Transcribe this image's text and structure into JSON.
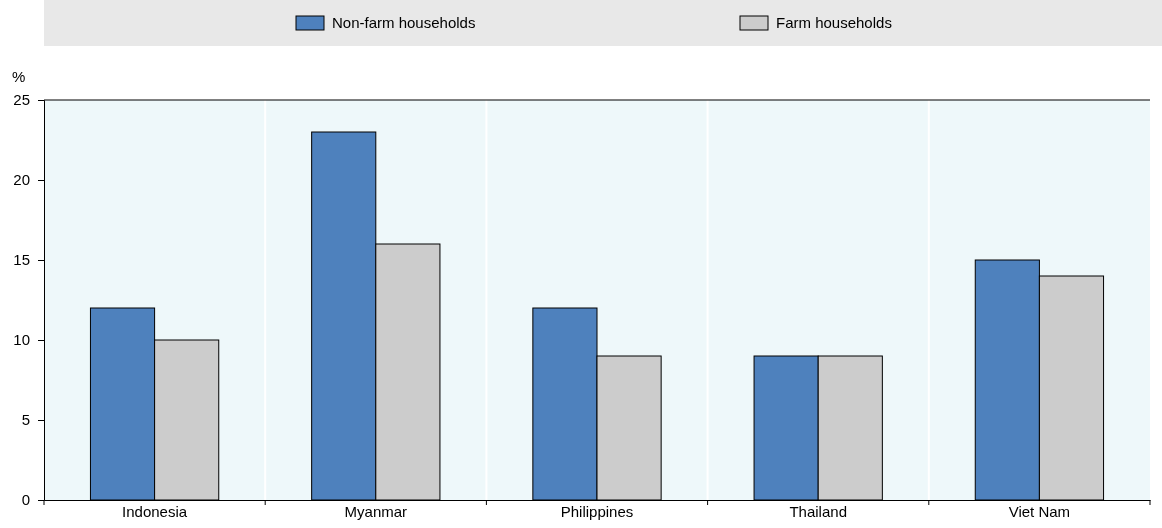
{
  "chart_data": {
    "type": "bar",
    "ylabel": "%",
    "categories": [
      "Indonesia",
      "Myanmar",
      "Philippines",
      "Thailand",
      "Viet Nam"
    ],
    "series": [
      {
        "name": "Non-farm households",
        "color": "#4e81bd",
        "values": [
          12,
          23,
          12,
          9,
          15
        ]
      },
      {
        "name": "Farm households",
        "color": "#cccccc",
        "values": [
          10,
          16,
          9,
          9,
          14
        ]
      }
    ],
    "ylim": [
      0,
      25
    ],
    "yticks": [
      0,
      5,
      10,
      15,
      20,
      25
    ],
    "legend": "top"
  }
}
